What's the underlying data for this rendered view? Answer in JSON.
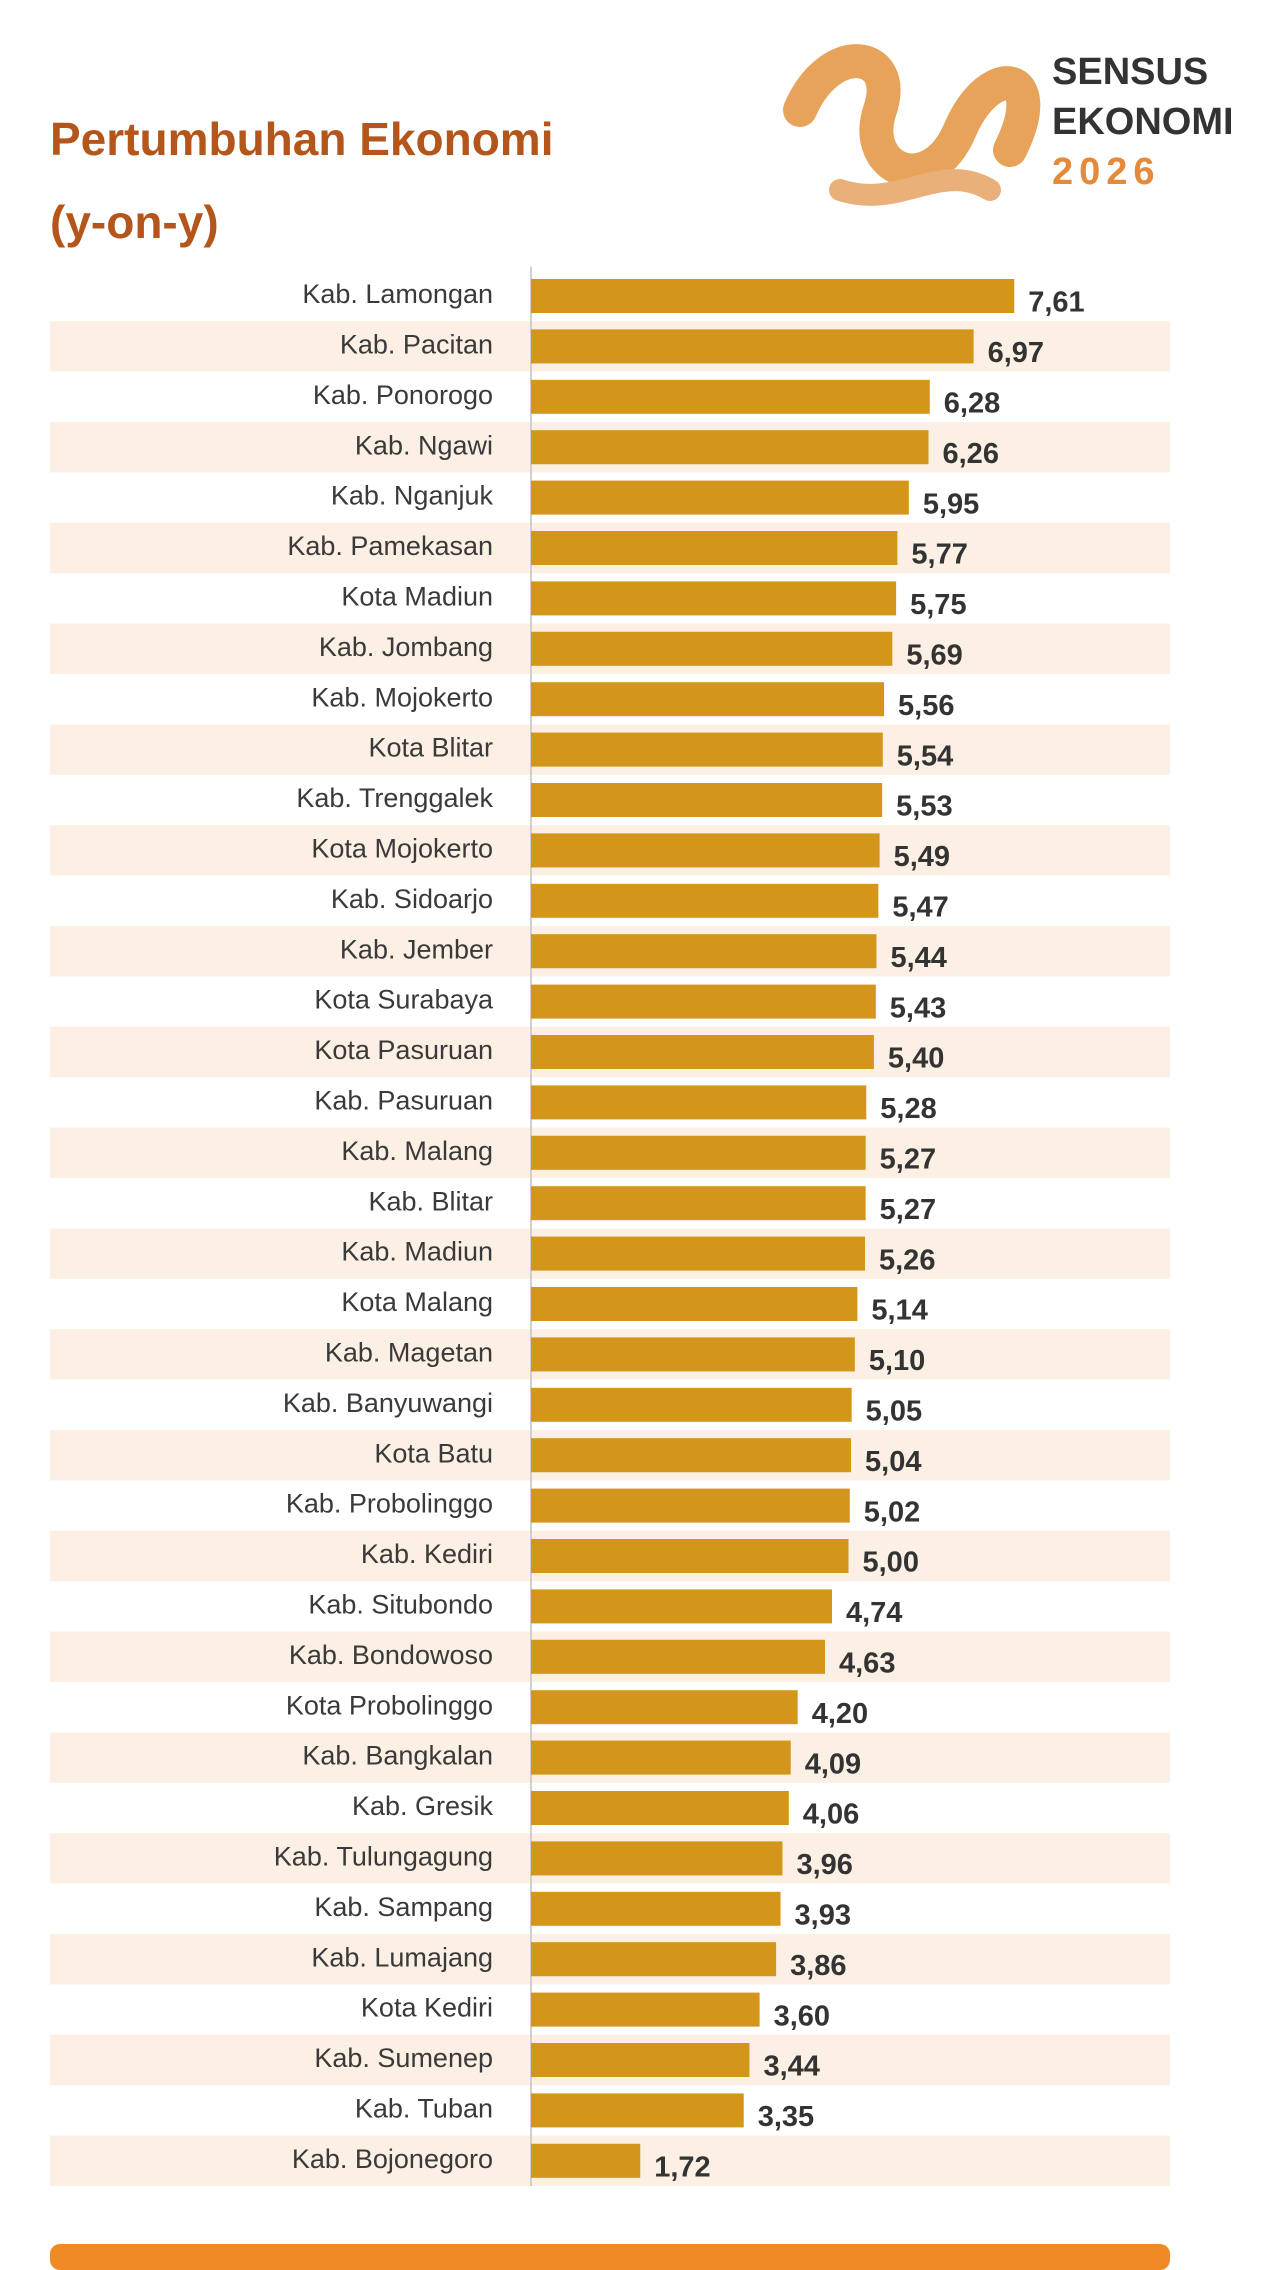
{
  "logo": [
    "SENSUS",
    "EKONOMI",
    "2026"
  ],
  "chart_data": {
    "type": "bar",
    "orientation": "horizontal",
    "title": "Pertumbuhan Ekonomi",
    "subtitle": "(y-on-y)",
    "color": "#d3961a",
    "categories": [
      "Kab. Lamongan",
      "Kab. Pacitan",
      "Kab. Ponorogo",
      "Kab. Ngawi",
      "Kab. Nganjuk",
      "Kab. Pamekasan",
      "Kota Madiun",
      "Kab. Jombang",
      "Kab. Mojokerto",
      "Kota Blitar",
      "Kab. Trenggalek",
      "Kota Mojokerto",
      "Kab. Sidoarjo",
      "Kab. Jember",
      "Kota Surabaya",
      "Kota Pasuruan",
      "Kab. Pasuruan",
      "Kab. Malang",
      "Kab. Blitar",
      "Kab. Madiun",
      "Kota Malang",
      "Kab. Magetan",
      "Kab. Banyuwangi",
      "Kota Batu",
      "Kab. Probolinggo",
      "Kab. Kediri",
      "Kab. Situbondo",
      "Kab. Bondowoso",
      "Kota Probolinggo",
      "Kab. Bangkalan",
      "Kab. Gresik",
      "Kab. Tulungagung",
      "Kab. Sampang",
      "Kab. Lumajang",
      "Kota Kediri",
      "Kab. Sumenep",
      "Kab. Tuban",
      "Kab. Bojonegoro"
    ],
    "values": [
      7.61,
      6.97,
      6.28,
      6.26,
      5.95,
      5.77,
      5.75,
      5.69,
      5.56,
      5.54,
      5.53,
      5.49,
      5.47,
      5.44,
      5.43,
      5.4,
      5.28,
      5.27,
      5.27,
      5.26,
      5.14,
      5.1,
      5.05,
      5.04,
      5.02,
      5.0,
      4.74,
      4.63,
      4.2,
      4.09,
      4.06,
      3.96,
      3.93,
      3.86,
      3.6,
      3.44,
      3.35,
      1.72
    ],
    "value_labels": [
      "7,61",
      "6,97",
      "6,28",
      "6,26",
      "5,95",
      "5,77",
      "5,75",
      "5,69",
      "5,56",
      "5,54",
      "5,53",
      "5,49",
      "5,47",
      "5,44",
      "5,43",
      "5,40",
      "5,28",
      "5,27",
      "5,27",
      "5,26",
      "5,14",
      "5,10",
      "5,05",
      "5,04",
      "5,02",
      "5,00",
      "4,74",
      "4,63",
      "4,20",
      "4,09",
      "4,06",
      "3,96",
      "3,93",
      "3,86",
      "3,60",
      "3,44",
      "3,35",
      "1,72"
    ]
  }
}
